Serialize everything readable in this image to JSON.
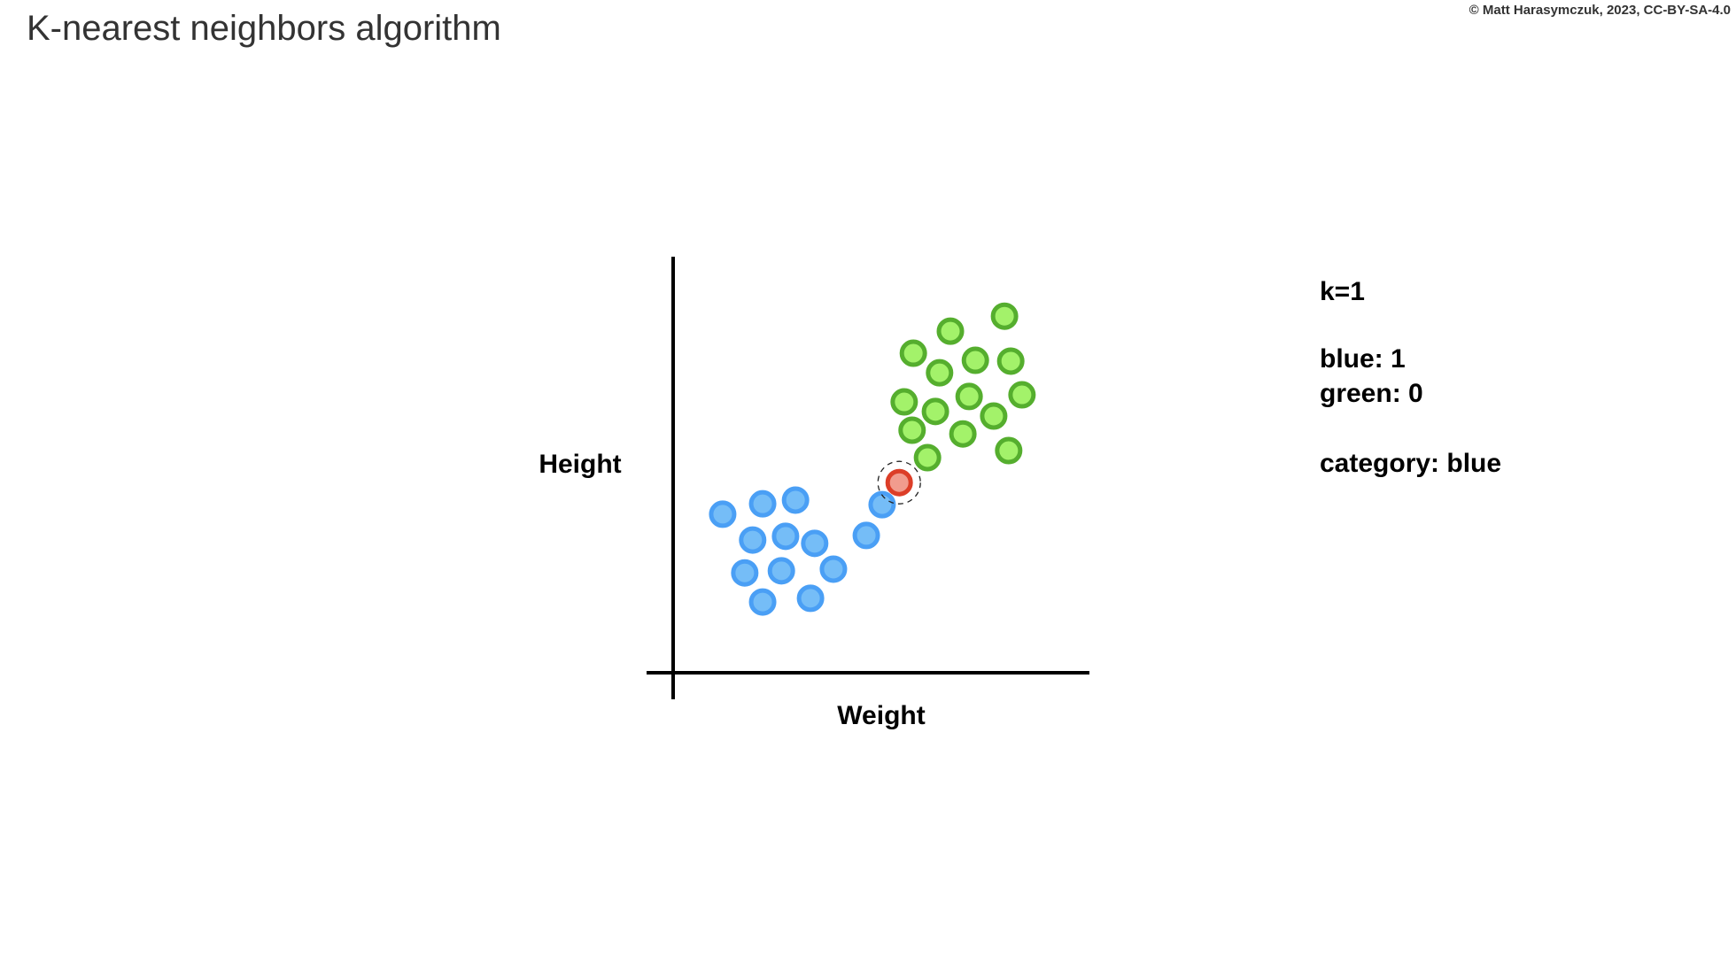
{
  "title": "K-nearest neighbors algorithm",
  "credit": "© Matt Harasymczuk, 2023, CC-BY-SA-4.0",
  "panel": {
    "k": "k=1",
    "blue_count": "blue: 1",
    "green_count": "green: 0",
    "category": "category: blue"
  },
  "chart_data": {
    "type": "scatter",
    "xlabel": "Weight",
    "ylabel": "Height",
    "xlim": [
      0,
      100
    ],
    "ylim": [
      0,
      100
    ],
    "grid": false,
    "colors": {
      "blue": {
        "stroke": "#4a9ff5",
        "fill": "#75bdf7"
      },
      "green": {
        "stroke": "#55ae2e",
        "fill": "#a3f26a"
      },
      "red": {
        "stroke": "#dc3e28",
        "fill": "#f19c8e"
      }
    },
    "series": [
      {
        "class": "green",
        "points": [
          [
            79.6,
            85.7
          ],
          [
            66.6,
            82.1
          ],
          [
            57.7,
            76.8
          ],
          [
            72.6,
            75.1
          ],
          [
            81.1,
            74.9
          ],
          [
            64.0,
            72.1
          ],
          [
            55.5,
            65.1
          ],
          [
            71.1,
            66.4
          ],
          [
            83.8,
            66.8
          ],
          [
            63.0,
            62.8
          ],
          [
            77.0,
            61.7
          ],
          [
            57.4,
            58.3
          ],
          [
            69.6,
            57.4
          ],
          [
            80.6,
            53.4
          ],
          [
            61.1,
            51.7
          ]
        ]
      },
      {
        "class": "blue",
        "points": [
          [
            50.2,
            40.4
          ],
          [
            46.4,
            33.0
          ],
          [
            11.9,
            38.1
          ],
          [
            21.5,
            40.6
          ],
          [
            29.4,
            41.5
          ],
          [
            19.1,
            31.9
          ],
          [
            27.0,
            32.8
          ],
          [
            34.0,
            31.1
          ],
          [
            17.2,
            24.0
          ],
          [
            26.0,
            24.5
          ],
          [
            38.5,
            24.9
          ],
          [
            21.5,
            17.0
          ],
          [
            33.0,
            17.9
          ]
        ]
      },
      {
        "class": "red",
        "query": true,
        "points": [
          [
            54.3,
            45.7
          ]
        ]
      }
    ]
  }
}
